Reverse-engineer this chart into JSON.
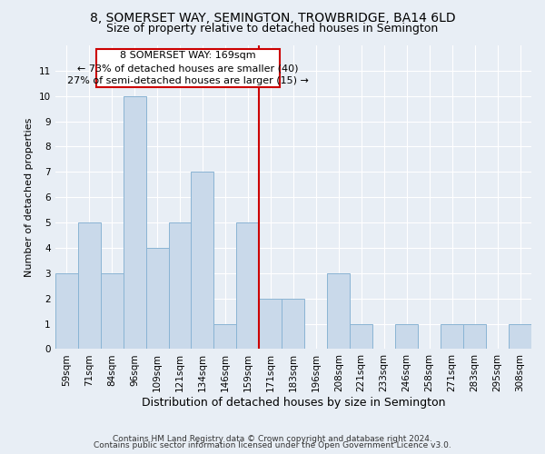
{
  "title1": "8, SOMERSET WAY, SEMINGTON, TROWBRIDGE, BA14 6LD",
  "title2": "Size of property relative to detached houses in Semington",
  "xlabel": "Distribution of detached houses by size in Semington",
  "ylabel": "Number of detached properties",
  "categories": [
    "59sqm",
    "71sqm",
    "84sqm",
    "96sqm",
    "109sqm",
    "121sqm",
    "134sqm",
    "146sqm",
    "159sqm",
    "171sqm",
    "183sqm",
    "196sqm",
    "208sqm",
    "221sqm",
    "233sqm",
    "246sqm",
    "258sqm",
    "271sqm",
    "283sqm",
    "295sqm",
    "308sqm"
  ],
  "values": [
    3,
    5,
    3,
    10,
    4,
    5,
    7,
    1,
    5,
    2,
    2,
    0,
    3,
    1,
    0,
    1,
    0,
    1,
    1,
    0,
    1
  ],
  "bar_color": "#c9d9ea",
  "bar_edge_color": "#8ab4d4",
  "background_color": "#e8eef5",
  "grid_color": "#ffffff",
  "vline_x_index": 8.5,
  "vline_color": "#cc0000",
  "ann_line1": "8 SOMERSET WAY: 169sqm",
  "ann_line2": "← 73% of detached houses are smaller (40)",
  "ann_line3": "27% of semi-detached houses are larger (15) →",
  "annotation_box_color": "#cc0000",
  "ylim": [
    0,
    12
  ],
  "yticks": [
    0,
    1,
    2,
    3,
    4,
    5,
    6,
    7,
    8,
    9,
    10,
    11
  ],
  "footer1": "Contains HM Land Registry data © Crown copyright and database right 2024.",
  "footer2": "Contains public sector information licensed under the Open Government Licence v3.0.",
  "title1_fontsize": 10,
  "title2_fontsize": 9,
  "xlabel_fontsize": 9,
  "ylabel_fontsize": 8,
  "tick_fontsize": 7.5,
  "footer_fontsize": 6.5,
  "ann_fontsize": 8
}
